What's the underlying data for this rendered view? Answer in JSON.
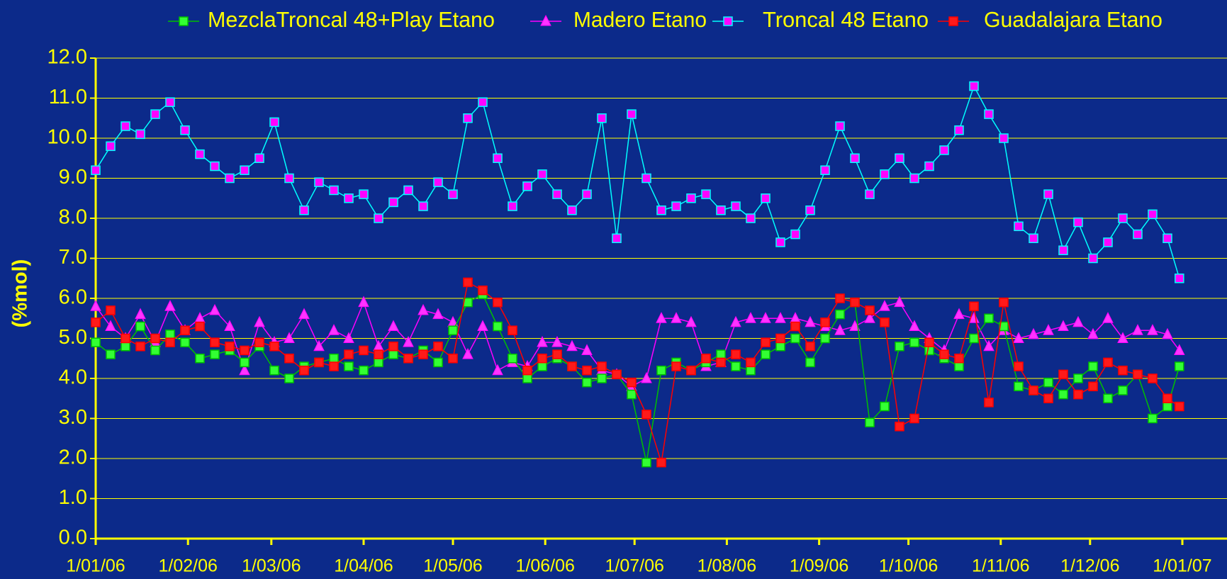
{
  "chart_data": {
    "type": "line",
    "y_label": "(%mol)",
    "x": [
      "2006-01-01",
      "2006-01-06",
      "2006-01-11",
      "2006-01-16",
      "2006-01-21",
      "2006-01-26",
      "2006-01-31",
      "2006-02-05",
      "2006-02-10",
      "2006-02-15",
      "2006-02-20",
      "2006-02-25",
      "2006-03-02",
      "2006-03-07",
      "2006-03-12",
      "2006-03-17",
      "2006-03-22",
      "2006-03-27",
      "2006-04-01",
      "2006-04-06",
      "2006-04-11",
      "2006-04-16",
      "2006-04-21",
      "2006-04-26",
      "2006-05-01",
      "2006-05-06",
      "2006-05-11",
      "2006-05-16",
      "2006-05-21",
      "2006-05-26",
      "2006-05-31",
      "2006-06-05",
      "2006-06-10",
      "2006-06-15",
      "2006-06-20",
      "2006-06-25",
      "2006-06-30",
      "2006-07-05",
      "2006-07-10",
      "2006-07-15",
      "2006-07-20",
      "2006-07-25",
      "2006-07-30",
      "2006-08-04",
      "2006-08-09",
      "2006-08-14",
      "2006-08-19",
      "2006-08-24",
      "2006-08-29",
      "2006-09-03",
      "2006-09-08",
      "2006-09-13",
      "2006-09-18",
      "2006-09-23",
      "2006-09-28",
      "2006-10-03",
      "2006-10-08",
      "2006-10-13",
      "2006-10-18",
      "2006-10-23",
      "2006-10-28",
      "2006-11-02",
      "2006-11-07",
      "2006-11-12",
      "2006-11-17",
      "2006-11-22",
      "2006-11-27",
      "2006-12-02",
      "2006-12-07",
      "2006-12-12",
      "2006-12-17",
      "2006-12-22",
      "2006-12-27",
      "2006-12-31"
    ],
    "series": [
      {
        "name": "MezclaTroncal 48+Play Etano",
        "color": "#00c000",
        "marker": "square",
        "marker_color": "#33ff33",
        "values": [
          4.9,
          4.6,
          4.8,
          5.3,
          4.7,
          5.1,
          4.9,
          4.5,
          4.6,
          4.7,
          4.4,
          4.8,
          4.2,
          4.0,
          4.3,
          4.4,
          4.5,
          4.3,
          4.2,
          4.4,
          4.6,
          4.5,
          4.7,
          4.4,
          5.2,
          5.9,
          6.1,
          5.3,
          4.5,
          4.0,
          4.3,
          4.5,
          4.3,
          3.9,
          4.0,
          4.1,
          3.6,
          1.9,
          4.2,
          4.4,
          4.2,
          4.4,
          4.6,
          4.3,
          4.2,
          4.6,
          4.8,
          5.0,
          4.4,
          5.0,
          5.6,
          5.9,
          2.9,
          3.3,
          4.8,
          4.9,
          4.7,
          4.5,
          4.3,
          5.0,
          5.5,
          5.3,
          3.8,
          3.7,
          3.9,
          3.6,
          4.0,
          4.3,
          3.5,
          3.7,
          4.1,
          3.0,
          3.3,
          4.3
        ]
      },
      {
        "name": "Madero Etano",
        "color": "#ff00ff",
        "marker": "triangle",
        "marker_color": "#ff33ff",
        "values": [
          5.8,
          5.3,
          5.0,
          5.6,
          4.9,
          5.8,
          5.2,
          5.5,
          5.7,
          5.3,
          4.2,
          5.4,
          4.9,
          5.0,
          5.6,
          4.8,
          5.2,
          5.0,
          5.9,
          4.8,
          5.3,
          4.9,
          5.7,
          5.6,
          5.4,
          4.6,
          5.3,
          4.2,
          4.4,
          4.3,
          4.9,
          4.9,
          4.8,
          4.7,
          4.2,
          4.1,
          3.8,
          4.0,
          5.5,
          5.5,
          5.4,
          4.3,
          4.4,
          5.4,
          5.5,
          5.5,
          5.5,
          5.5,
          5.4,
          5.3,
          5.2,
          5.3,
          5.5,
          5.8,
          5.9,
          5.3,
          5.0,
          4.7,
          5.6,
          5.5,
          4.8,
          5.2,
          5.0,
          5.1,
          5.2,
          5.3,
          5.4,
          5.1,
          5.5,
          5.0,
          5.2,
          5.2,
          5.1,
          4.7
        ]
      },
      {
        "name": "Troncal 48 Etano",
        "color": "#00ffff",
        "marker": "square",
        "marker_color": "#ff00ff",
        "values": [
          9.2,
          9.8,
          10.3,
          10.1,
          10.6,
          10.9,
          10.2,
          9.6,
          9.3,
          9.0,
          9.2,
          9.5,
          10.4,
          9.0,
          8.2,
          8.9,
          8.7,
          8.5,
          8.6,
          8.0,
          8.4,
          8.7,
          8.3,
          8.9,
          8.6,
          10.5,
          10.9,
          9.5,
          8.3,
          8.8,
          9.1,
          8.6,
          8.2,
          8.6,
          10.5,
          7.5,
          10.6,
          9.0,
          8.2,
          8.3,
          8.5,
          8.6,
          8.2,
          8.3,
          8.0,
          8.5,
          7.4,
          7.6,
          8.2,
          9.2,
          10.3,
          9.5,
          8.6,
          9.1,
          9.5,
          9.0,
          9.3,
          9.7,
          10.2,
          11.3,
          10.6,
          10.0,
          7.8,
          7.5,
          8.6,
          7.2,
          7.9,
          7.0,
          7.4,
          8.0,
          7.6,
          8.1,
          7.5,
          6.5
        ]
      },
      {
        "name": "Guadalajara Etano",
        "color": "#ff0000",
        "marker": "square",
        "marker_color": "#ff1a1a",
        "values": [
          5.4,
          5.7,
          5.0,
          4.8,
          5.0,
          4.9,
          5.2,
          5.3,
          4.9,
          4.8,
          4.7,
          4.9,
          4.8,
          4.5,
          4.2,
          4.4,
          4.3,
          4.6,
          4.7,
          4.6,
          4.8,
          4.5,
          4.6,
          4.8,
          4.5,
          6.4,
          6.2,
          5.9,
          5.2,
          4.2,
          4.5,
          4.6,
          4.3,
          4.2,
          4.3,
          4.1,
          3.9,
          3.1,
          1.9,
          4.3,
          4.2,
          4.5,
          4.4,
          4.6,
          4.4,
          4.9,
          5.0,
          5.3,
          4.8,
          5.4,
          6.0,
          5.9,
          5.7,
          5.4,
          2.8,
          3.0,
          4.9,
          4.6,
          4.5,
          5.8,
          3.4,
          5.9,
          4.3,
          3.7,
          3.5,
          4.1,
          3.6,
          3.8,
          4.4,
          4.2,
          4.1,
          4.0,
          3.5,
          3.3
        ]
      }
    ],
    "xlim": [
      "2006-01-01",
      "2007-01-16"
    ],
    "xticks": [
      {
        "value": "2006-01-01",
        "label": "1/01/06"
      },
      {
        "value": "2006-02-01",
        "label": "1/02/06"
      },
      {
        "value": "2006-03-01",
        "label": "1/03/06"
      },
      {
        "value": "2006-04-01",
        "label": "1/04/06"
      },
      {
        "value": "2006-05-01",
        "label": "1/05/06"
      },
      {
        "value": "2006-06-01",
        "label": "1/06/06"
      },
      {
        "value": "2006-07-01",
        "label": "1/07/06"
      },
      {
        "value": "2006-08-01",
        "label": "1/08/06"
      },
      {
        "value": "2006-09-01",
        "label": "1/09/06"
      },
      {
        "value": "2006-10-01",
        "label": "1/10/06"
      },
      {
        "value": "2006-11-01",
        "label": "1/11/06"
      },
      {
        "value": "2006-12-01",
        "label": "1/12/06"
      },
      {
        "value": "2007-01-01",
        "label": "1/01/07"
      }
    ],
    "ylim": [
      0,
      12
    ],
    "yticks": [
      {
        "value": 0,
        "label": "0.0"
      },
      {
        "value": 1,
        "label": "1.0"
      },
      {
        "value": 2,
        "label": "2.0"
      },
      {
        "value": 3,
        "label": "3.0"
      },
      {
        "value": 4,
        "label": "4.0"
      },
      {
        "value": 5,
        "label": "5.0"
      },
      {
        "value": 6,
        "label": "6.0"
      },
      {
        "value": 7,
        "label": "7.0"
      },
      {
        "value": 8,
        "label": "8.0"
      },
      {
        "value": 9,
        "label": "9.0"
      },
      {
        "value": 10,
        "label": "10.0"
      },
      {
        "value": 11,
        "label": "11.0"
      },
      {
        "value": 12,
        "label": "12.0"
      }
    ],
    "grid": true,
    "legend": "top"
  }
}
